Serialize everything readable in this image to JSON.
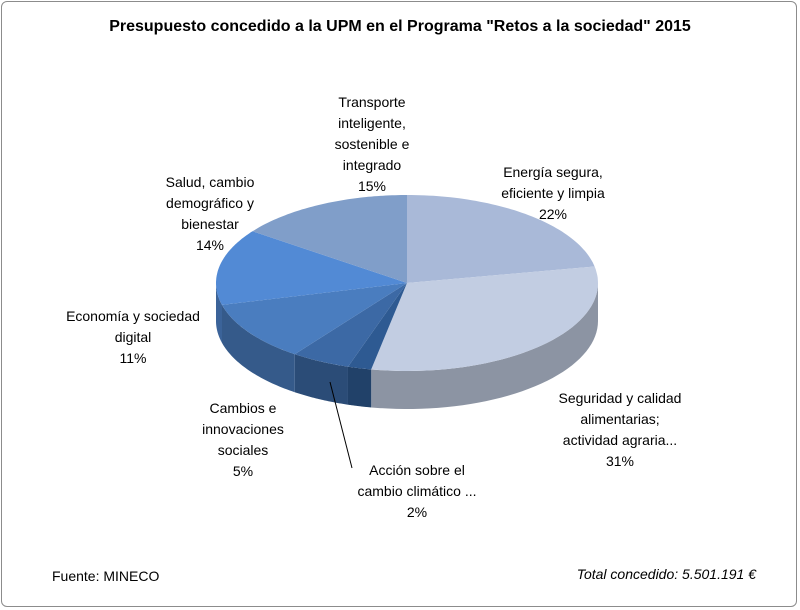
{
  "chart_data": {
    "type": "pie",
    "title": "Presupuesto concedido a la UPM en el Programa \"Retos a la sociedad\" 2015",
    "three_d": true,
    "start": "top",
    "direction": "clockwise",
    "slices": [
      {
        "label": "Energía segura,\neficiente y limpia",
        "pct_label": "22%",
        "value": 22,
        "color": "#a9b9d8"
      },
      {
        "label": "Seguridad y calidad\nalimentarias;\nactividad agraria...",
        "pct_label": "31%",
        "value": 31,
        "color": "#c2cde2"
      },
      {
        "label": "Acción sobre el\ncambio climático ...",
        "pct_label": "2%",
        "value": 2,
        "color": "#2e5a92"
      },
      {
        "label": "Cambios e\ninnovaciones\nsociales",
        "pct_label": "5%",
        "value": 5,
        "color": "#3c69a5"
      },
      {
        "label": "Economía y sociedad\ndigital",
        "pct_label": "11%",
        "value": 11,
        "color": "#4a7dbf"
      },
      {
        "label": "Salud, cambio\ndemográfico y\nbienestar",
        "pct_label": "14%",
        "value": 14,
        "color": "#528ad5"
      },
      {
        "label": "Transporte\ninteligente,\nsostenible e\nintegrado",
        "pct_label": "15%",
        "value": 15,
        "color": "#809ec9"
      }
    ]
  },
  "footer": {
    "source": "Fuente: MINECO",
    "total": "Total concedido: 5.501.191 €"
  }
}
